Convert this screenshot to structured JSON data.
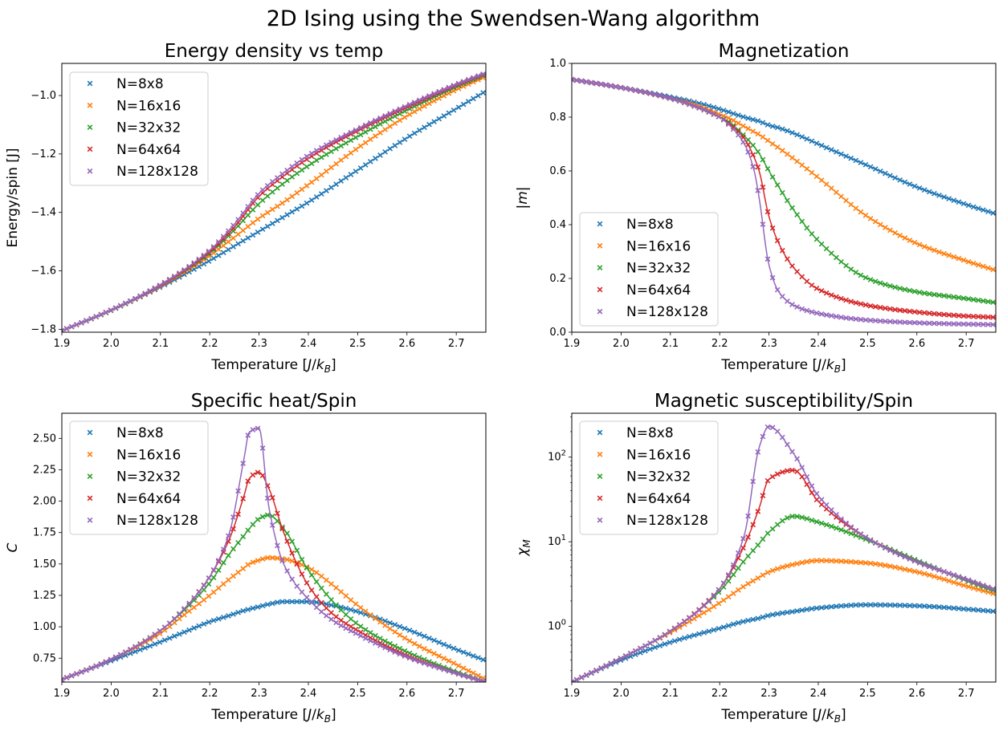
{
  "figure": {
    "suptitle": "2D Ising using the Swendsen-Wang algorithm"
  },
  "colors": {
    "N8": "#1f77b4",
    "N16": "#ff7f0e",
    "N32": "#2ca02c",
    "N64": "#d62728",
    "N128": "#9467bd"
  },
  "series_names": [
    "N=8x8",
    "N=16x16",
    "N=32x32",
    "N=64x64",
    "N=128x128"
  ],
  "chart_data": [
    {
      "type": "scatter",
      "title": "Energy density vs temp",
      "xlabel": "Temperature [J/k_B]",
      "ylabel": "Energy/spin [J]",
      "xlim": [
        1.9,
        2.76
      ],
      "ylim": [
        -1.81,
        -0.89
      ],
      "yscale": "linear",
      "legend": "upper left",
      "xticks": [
        1.9,
        2.0,
        2.1,
        2.2,
        2.3,
        2.4,
        2.5,
        2.6,
        2.7
      ],
      "xtick_labels": [
        "1.9",
        "2.0",
        "2.1",
        "2.2",
        "2.3",
        "2.4",
        "2.5",
        "2.6",
        "2.7"
      ],
      "yticks": [
        -1.8,
        -1.6,
        -1.4,
        -1.2,
        -1.0
      ],
      "ytick_labels": [
        "−1.8",
        "−1.6",
        "−1.4",
        "−1.2",
        "−1.0"
      ],
      "x": [
        1.9,
        2.0,
        2.1,
        2.2,
        2.25,
        2.3,
        2.35,
        2.4,
        2.5,
        2.6,
        2.7,
        2.76
      ],
      "series": [
        {
          "name": "N=8x8",
          "values": [
            -1.805,
            -1.735,
            -1.655,
            -1.565,
            -1.515,
            -1.465,
            -1.415,
            -1.365,
            -1.255,
            -1.145,
            -1.045,
            -0.985
          ]
        },
        {
          "name": "N=16x16",
          "values": [
            -1.805,
            -1.735,
            -1.652,
            -1.548,
            -1.485,
            -1.42,
            -1.365,
            -1.305,
            -1.18,
            -1.07,
            -0.98,
            -0.935
          ]
        },
        {
          "name": "N=32x32",
          "values": [
            -1.805,
            -1.735,
            -1.65,
            -1.54,
            -1.46,
            -1.37,
            -1.3,
            -1.24,
            -1.14,
            -1.05,
            -0.97,
            -0.928
          ]
        },
        {
          "name": "N=64x64",
          "values": [
            -1.805,
            -1.734,
            -1.65,
            -1.535,
            -1.45,
            -1.345,
            -1.275,
            -1.215,
            -1.12,
            -1.04,
            -0.965,
            -0.925
          ]
        },
        {
          "name": "N=128x128",
          "values": [
            -1.805,
            -1.734,
            -1.648,
            -1.53,
            -1.44,
            -1.335,
            -1.265,
            -1.205,
            -1.115,
            -1.035,
            -0.962,
            -0.923
          ]
        }
      ]
    },
    {
      "type": "scatter",
      "title": "Magnetization",
      "xlabel": "Temperature [J/k_B]",
      "ylabel": "|m|",
      "xlim": [
        1.9,
        2.76
      ],
      "ylim": [
        0.0,
        1.0
      ],
      "yscale": "linear",
      "legend": "lower left",
      "xticks": [
        1.9,
        2.0,
        2.1,
        2.2,
        2.3,
        2.4,
        2.5,
        2.6,
        2.7
      ],
      "xtick_labels": [
        "1.9",
        "2.0",
        "2.1",
        "2.2",
        "2.3",
        "2.4",
        "2.5",
        "2.6",
        "2.7"
      ],
      "yticks": [
        0.0,
        0.2,
        0.4,
        0.6,
        0.8,
        1.0
      ],
      "ytick_labels": [
        "0.0",
        "0.2",
        "0.4",
        "0.6",
        "0.8",
        "1.0"
      ],
      "x": [
        1.9,
        2.0,
        2.1,
        2.15,
        2.2,
        2.22,
        2.25,
        2.27,
        2.28,
        2.3,
        2.32,
        2.35,
        2.4,
        2.5,
        2.6,
        2.7,
        2.76
      ],
      "series": [
        {
          "name": "N=8x8",
          "values": [
            0.94,
            0.91,
            0.875,
            0.855,
            0.83,
            0.818,
            0.8,
            0.79,
            0.785,
            0.77,
            0.76,
            0.74,
            0.7,
            0.62,
            0.54,
            0.475,
            0.44
          ]
        },
        {
          "name": "N=16x16",
          "values": [
            0.94,
            0.91,
            0.87,
            0.845,
            0.81,
            0.795,
            0.765,
            0.745,
            0.735,
            0.71,
            0.685,
            0.645,
            0.575,
            0.43,
            0.33,
            0.265,
            0.23
          ]
        },
        {
          "name": "N=32x32",
          "values": [
            0.94,
            0.91,
            0.87,
            0.84,
            0.8,
            0.78,
            0.73,
            0.69,
            0.665,
            0.6,
            0.54,
            0.455,
            0.34,
            0.2,
            0.15,
            0.125,
            0.11
          ]
        },
        {
          "name": "N=64x64",
          "values": [
            0.94,
            0.91,
            0.87,
            0.84,
            0.8,
            0.775,
            0.72,
            0.65,
            0.6,
            0.43,
            0.33,
            0.24,
            0.16,
            0.1,
            0.075,
            0.06,
            0.055
          ]
        },
        {
          "name": "N=128x128",
          "values": [
            0.94,
            0.91,
            0.87,
            0.84,
            0.8,
            0.77,
            0.7,
            0.6,
            0.5,
            0.25,
            0.15,
            0.1,
            0.07,
            0.045,
            0.035,
            0.03,
            0.028
          ]
        }
      ]
    },
    {
      "type": "scatter",
      "title": "Specific heat/Spin",
      "xlabel": "Temperature [J/k_B]",
      "ylabel": "C",
      "xlim": [
        1.9,
        2.76
      ],
      "ylim": [
        0.56,
        2.7
      ],
      "yscale": "linear",
      "legend": "upper left",
      "xticks": [
        1.9,
        2.0,
        2.1,
        2.2,
        2.3,
        2.4,
        2.5,
        2.6,
        2.7
      ],
      "xtick_labels": [
        "1.9",
        "2.0",
        "2.1",
        "2.2",
        "2.3",
        "2.4",
        "2.5",
        "2.6",
        "2.7"
      ],
      "yticks": [
        0.75,
        1.0,
        1.25,
        1.5,
        1.75,
        2.0,
        2.25,
        2.5
      ],
      "ytick_labels": [
        "0.75",
        "1.00",
        "1.25",
        "1.50",
        "1.75",
        "2.00",
        "2.25",
        "2.50"
      ],
      "x": [
        1.9,
        2.0,
        2.1,
        2.15,
        2.2,
        2.24,
        2.27,
        2.28,
        2.3,
        2.32,
        2.35,
        2.4,
        2.45,
        2.5,
        2.6,
        2.7,
        2.76
      ],
      "series": [
        {
          "name": "N=8x8",
          "values": [
            0.58,
            0.73,
            0.88,
            0.96,
            1.04,
            1.09,
            1.13,
            1.14,
            1.16,
            1.18,
            1.2,
            1.2,
            1.17,
            1.12,
            0.98,
            0.82,
            0.73
          ]
        },
        {
          "name": "N=16x16",
          "values": [
            0.58,
            0.74,
            0.95,
            1.1,
            1.25,
            1.38,
            1.47,
            1.5,
            1.53,
            1.55,
            1.54,
            1.47,
            1.33,
            1.17,
            0.9,
            0.7,
            0.58
          ]
        },
        {
          "name": "N=32x32",
          "values": [
            0.58,
            0.74,
            0.97,
            1.14,
            1.35,
            1.58,
            1.73,
            1.78,
            1.86,
            1.89,
            1.78,
            1.45,
            1.2,
            1.02,
            0.8,
            0.64,
            0.56
          ]
        },
        {
          "name": "N=64x64",
          "values": [
            0.58,
            0.74,
            0.97,
            1.15,
            1.4,
            1.7,
            2.05,
            2.18,
            2.23,
            2.1,
            1.75,
            1.33,
            1.1,
            0.97,
            0.77,
            0.63,
            0.56
          ]
        },
        {
          "name": "N=128x128",
          "values": [
            0.58,
            0.74,
            0.97,
            1.15,
            1.4,
            1.75,
            2.35,
            2.55,
            2.58,
            1.95,
            1.5,
            1.22,
            1.05,
            0.94,
            0.76,
            0.63,
            0.56
          ]
        }
      ]
    },
    {
      "type": "scatter",
      "title": "Magnetic susceptibility/Spin",
      "xlabel": "Temperature [J/k_B]",
      "ylabel": "χ_M",
      "xlim": [
        1.9,
        2.76
      ],
      "ylim": [
        0.22,
        330
      ],
      "yscale": "log",
      "legend": "upper left",
      "xticks": [
        1.9,
        2.0,
        2.1,
        2.2,
        2.3,
        2.4,
        2.5,
        2.6,
        2.7
      ],
      "xtick_labels": [
        "1.9",
        "2.0",
        "2.1",
        "2.2",
        "2.3",
        "2.4",
        "2.5",
        "2.6",
        "2.7"
      ],
      "yticks": [
        1,
        10,
        100
      ],
      "ytick_labels": [
        "10^0",
        "10^1",
        "10^2"
      ],
      "x": [
        1.9,
        2.0,
        2.1,
        2.2,
        2.25,
        2.28,
        2.3,
        2.35,
        2.4,
        2.5,
        2.6,
        2.7,
        2.76
      ],
      "series": [
        {
          "name": "N=8x8",
          "values": [
            0.22,
            0.4,
            0.65,
            0.95,
            1.15,
            1.25,
            1.35,
            1.5,
            1.65,
            1.8,
            1.75,
            1.6,
            1.5
          ]
        },
        {
          "name": "N=16x16",
          "values": [
            0.22,
            0.42,
            0.85,
            1.9,
            3.0,
            3.8,
            4.4,
            5.4,
            6.0,
            5.6,
            4.4,
            3.0,
            2.4
          ]
        },
        {
          "name": "N=32x32",
          "values": [
            0.22,
            0.42,
            0.88,
            2.6,
            6.0,
            9.5,
            13.0,
            20.0,
            17.0,
            10.5,
            6.0,
            3.5,
            2.6
          ]
        },
        {
          "name": "N=64x64",
          "values": [
            0.22,
            0.42,
            0.88,
            2.8,
            9.0,
            25.0,
            55.0,
            70.0,
            30.0,
            11.0,
            5.8,
            3.6,
            2.7
          ]
        },
        {
          "name": "N=128x128",
          "values": [
            0.22,
            0.42,
            0.88,
            2.8,
            12.0,
            130.0,
            230.0,
            110.0,
            35.0,
            11.0,
            5.8,
            3.6,
            2.7
          ]
        }
      ]
    }
  ]
}
